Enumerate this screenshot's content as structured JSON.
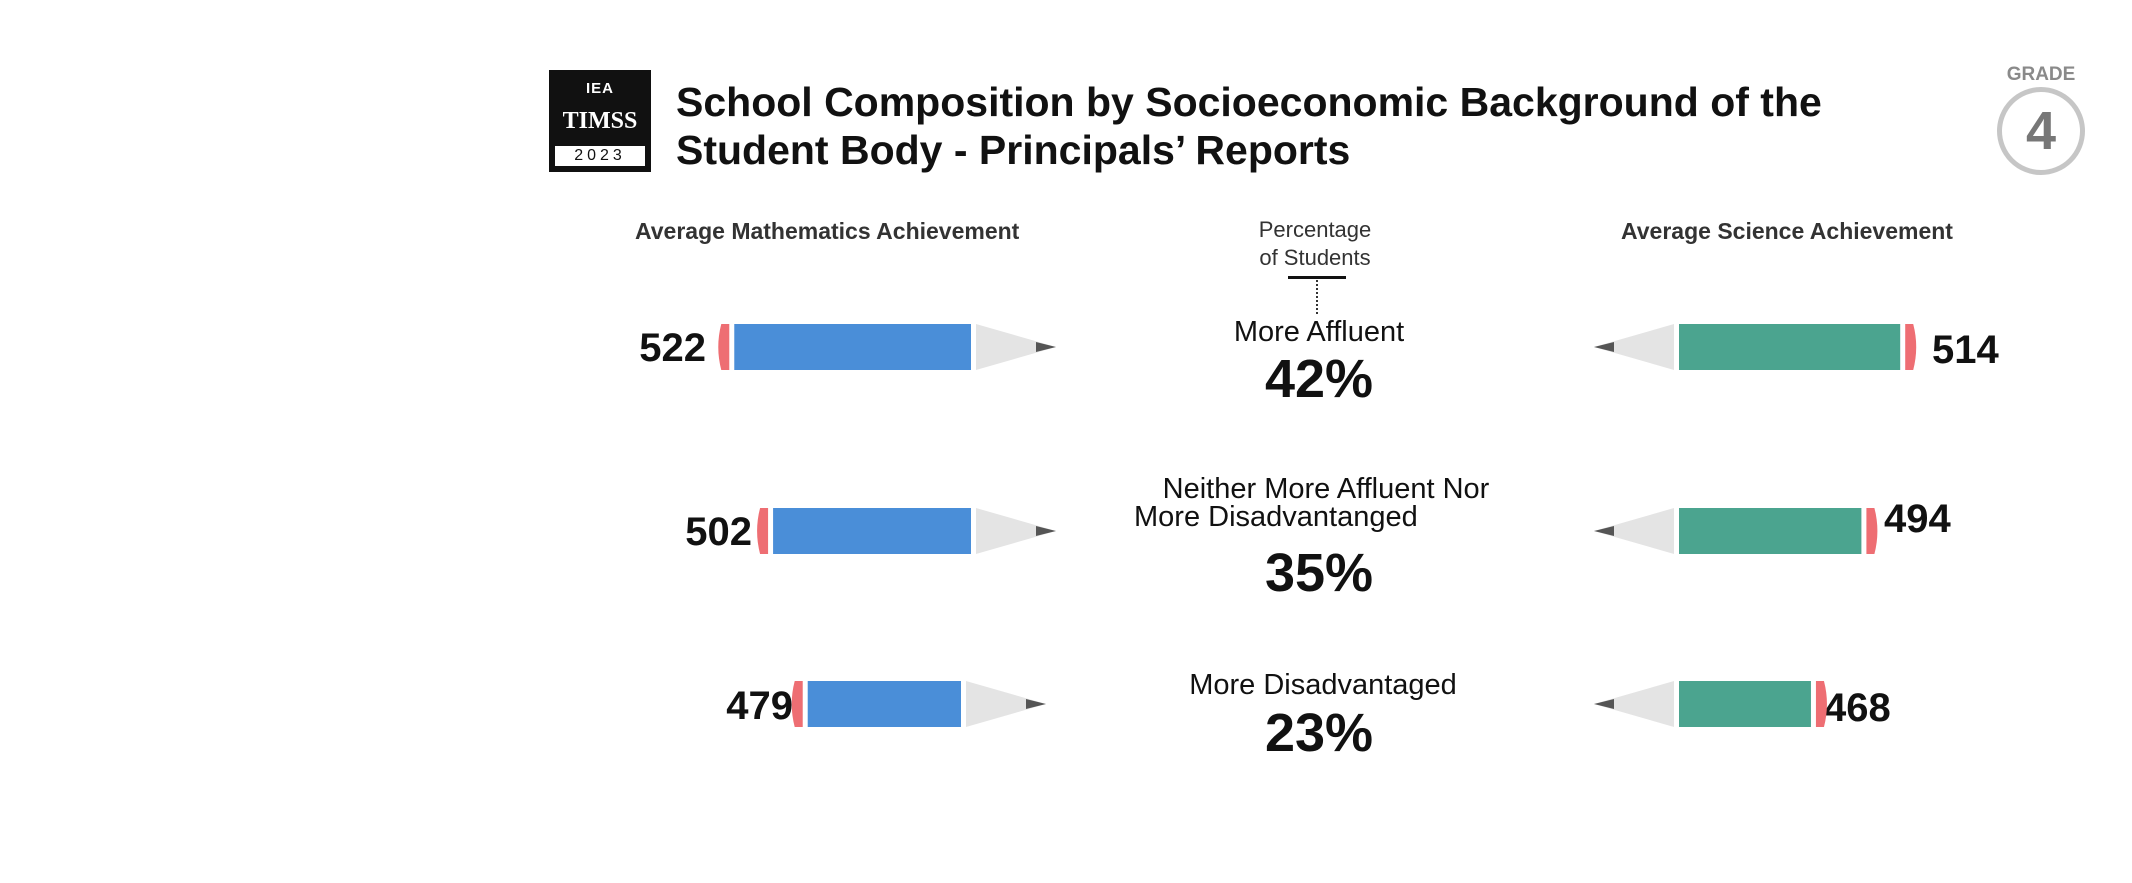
{
  "logo": {
    "top": "IEA",
    "mid": "TIMSS",
    "bottom": "2023"
  },
  "title": "School Composition by Socioeconomic Background of the Student Body - Principals’ Reports",
  "grade": {
    "label": "GRADE",
    "number": "4"
  },
  "colors": {
    "math": "#4a8ed8",
    "science": "#4ba48f",
    "eraser": "#ee6e73",
    "tip": "#e4e4e4",
    "lead": "#555555"
  },
  "chart_data": {
    "type": "bar",
    "left_title": "Average Mathematics Achievement",
    "center_title_line1": "Percentage",
    "center_title_line2": "of Students",
    "right_title": "Average Science Achievement",
    "categories": [
      {
        "label_lines": [
          "More Affluent"
        ],
        "percent": "42%",
        "math": 522,
        "science": 514
      },
      {
        "label_lines": [
          "Neither More Affluent Nor",
          "More Disadvantanged"
        ],
        "percent": "35%",
        "math": 502,
        "science": 494
      },
      {
        "label_lines": [
          "More Disadvantaged"
        ],
        "percent": "23%",
        "math": 479,
        "science": 468
      }
    ]
  }
}
